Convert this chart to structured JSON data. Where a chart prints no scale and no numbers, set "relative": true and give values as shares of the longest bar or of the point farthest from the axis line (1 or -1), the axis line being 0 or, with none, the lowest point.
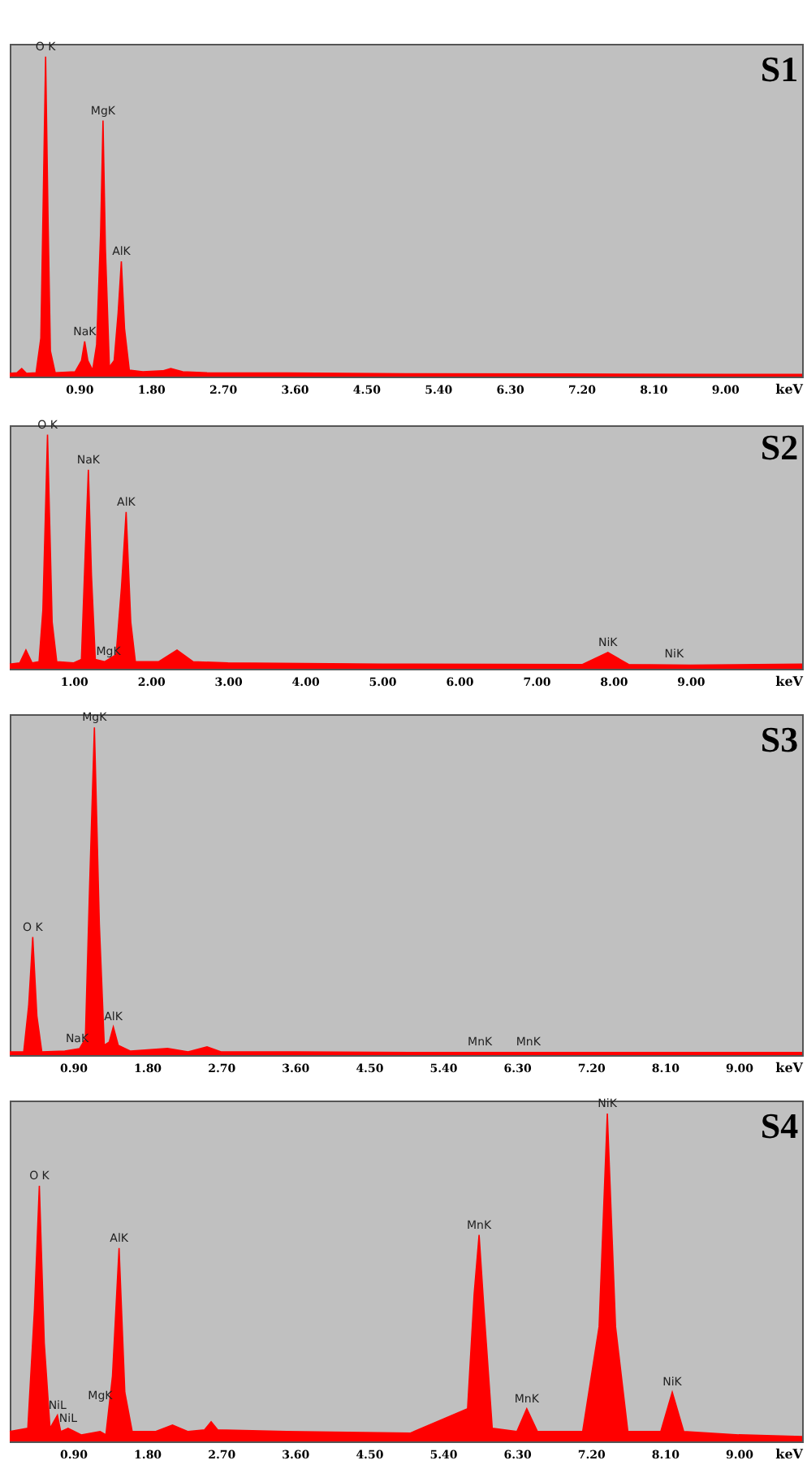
{
  "chart_data": [
    {
      "type": "area",
      "title": "S1",
      "xlabel": "keV",
      "relative": true,
      "color": "#ff0000",
      "xlim": [
        0.03,
        9.97
      ],
      "xticks": [
        {
          "value": 0.9,
          "label": "0.90"
        },
        {
          "value": 1.8,
          "label": "1.80"
        },
        {
          "value": 2.7,
          "label": "2.70"
        },
        {
          "value": 3.6,
          "label": "3.60"
        },
        {
          "value": 4.5,
          "label": "4.50"
        },
        {
          "value": 5.4,
          "label": "5.40"
        },
        {
          "value": 6.3,
          "label": "6.30"
        },
        {
          "value": 7.2,
          "label": "7.20"
        },
        {
          "value": 8.1,
          "label": "8.10"
        },
        {
          "value": 9,
          "label": "9.00"
        }
      ],
      "x": [
        0.03,
        0.12,
        0.18,
        0.24,
        0.36,
        0.42,
        0.45,
        0.48,
        0.51,
        0.54,
        0.6,
        0.85,
        0.93,
        0.97,
        1.01,
        1.07,
        1.12,
        1.17,
        1.2,
        1.23,
        1.28,
        1.34,
        1.39,
        1.43,
        1.47,
        1.53,
        1.7,
        1.95,
        2.05,
        2.2,
        2.5,
        3.5,
        5,
        7,
        9,
        9.97
      ],
      "values": [
        0.01,
        0.012,
        0.025,
        0.01,
        0.012,
        0.12,
        0.55,
        1,
        0.5,
        0.08,
        0.012,
        0.015,
        0.05,
        0.11,
        0.05,
        0.02,
        0.1,
        0.45,
        0.8,
        0.4,
        0.03,
        0.05,
        0.2,
        0.36,
        0.15,
        0.02,
        0.015,
        0.018,
        0.025,
        0.015,
        0.012,
        0.011,
        0.009,
        0.008,
        0.007,
        0.007
      ],
      "annotations": [
        {
          "text": "O K",
          "x": 0.48,
          "y": 1
        },
        {
          "text": "MgK",
          "x": 1.2,
          "y": 0.8
        },
        {
          "text": "AlK",
          "x": 1.43,
          "y": 0.36
        },
        {
          "text": "NaK",
          "x": 0.97,
          "y": 0.11
        }
      ]
    },
    {
      "type": "area",
      "title": "S2",
      "xlabel": "keV",
      "relative": true,
      "color": "#ff0000",
      "xlim": [
        0.17,
        10.45
      ],
      "xticks": [
        {
          "value": 1,
          "label": "1.00"
        },
        {
          "value": 2,
          "label": "2.00"
        },
        {
          "value": 3,
          "label": "3.00"
        },
        {
          "value": 4,
          "label": "4.00"
        },
        {
          "value": 5,
          "label": "5.00"
        },
        {
          "value": 6,
          "label": "6.00"
        },
        {
          "value": 7,
          "label": "7.00"
        },
        {
          "value": 8,
          "label": "8.00"
        },
        {
          "value": 9,
          "label": "9.00"
        }
      ],
      "x": [
        0.17,
        0.3,
        0.38,
        0.46,
        0.55,
        0.6,
        0.66,
        0.72,
        0.78,
        1.0,
        1.1,
        1.15,
        1.19,
        1.23,
        1.28,
        1.4,
        1.55,
        1.62,
        1.68,
        1.74,
        1.8,
        2.1,
        2.34,
        2.55,
        3,
        5,
        7.6,
        7.93,
        8.2,
        9,
        10.45
      ],
      "values": [
        0.02,
        0.025,
        0.08,
        0.025,
        0.03,
        0.25,
        1,
        0.2,
        0.03,
        0.025,
        0.04,
        0.5,
        0.85,
        0.4,
        0.04,
        0.03,
        0.06,
        0.35,
        0.67,
        0.2,
        0.03,
        0.03,
        0.08,
        0.03,
        0.025,
        0.02,
        0.018,
        0.07,
        0.018,
        0.015,
        0.02
      ],
      "annotations": [
        {
          "text": "O K",
          "x": 0.66,
          "y": 1
        },
        {
          "text": "NaK",
          "x": 1.19,
          "y": 0.85
        },
        {
          "text": "AlK",
          "x": 1.68,
          "y": 0.67
        },
        {
          "text": "MgK",
          "x": 1.45,
          "y": 0.03
        },
        {
          "text": "NiK",
          "x": 7.93,
          "y": 0.07
        },
        {
          "text": "NiK",
          "x": 8.79,
          "y": 0.02
        }
      ]
    },
    {
      "type": "area",
      "title": "S3",
      "xlabel": "keV",
      "relative": true,
      "color": "#ff0000",
      "xlim": [
        0.13,
        9.77
      ],
      "xticks": [
        {
          "value": 0.9,
          "label": "0.90"
        },
        {
          "value": 1.8,
          "label": "1.80"
        },
        {
          "value": 2.7,
          "label": "2.70"
        },
        {
          "value": 3.6,
          "label": "3.60"
        },
        {
          "value": 4.5,
          "label": "4.50"
        },
        {
          "value": 5.4,
          "label": "5.40"
        },
        {
          "value": 6.3,
          "label": "6.30"
        },
        {
          "value": 7.2,
          "label": "7.20"
        },
        {
          "value": 8.1,
          "label": "8.10"
        },
        {
          "value": 9,
          "label": "9.00"
        }
      ],
      "x": [
        0.13,
        0.3,
        0.36,
        0.41,
        0.46,
        0.52,
        0.8,
        0.98,
        1.05,
        1.1,
        1.16,
        1.22,
        1.28,
        1.34,
        1.39,
        1.45,
        1.6,
        2.05,
        2.3,
        2.53,
        2.7,
        3.6,
        5,
        7,
        9.77
      ],
      "values": [
        0.01,
        0.01,
        0.15,
        0.36,
        0.12,
        0.01,
        0.012,
        0.02,
        0.05,
        0.5,
        1,
        0.4,
        0.03,
        0.04,
        0.086,
        0.03,
        0.012,
        0.02,
        0.01,
        0.025,
        0.01,
        0.01,
        0.008,
        0.008,
        0.008
      ],
      "annotations": [
        {
          "text": "MgK",
          "x": 1.16,
          "y": 1
        },
        {
          "text": "O K",
          "x": 0.41,
          "y": 0.36
        },
        {
          "text": "NaK",
          "x": 0.95,
          "y": 0.02
        },
        {
          "text": "AlK",
          "x": 1.39,
          "y": 0.086
        },
        {
          "text": "MnK",
          "x": 5.85,
          "y": 0.01
        },
        {
          "text": "MnK",
          "x": 6.44,
          "y": 0.01
        }
      ]
    },
    {
      "type": "area",
      "title": "S4",
      "xlabel": "keV",
      "relative": true,
      "color": "#ff0000",
      "xlim": [
        0.13,
        9.77
      ],
      "xticks": [
        {
          "value": 0.9,
          "label": "0.90"
        },
        {
          "value": 1.8,
          "label": "1.80"
        },
        {
          "value": 2.7,
          "label": "2.70"
        },
        {
          "value": 3.6,
          "label": "3.60"
        },
        {
          "value": 4.5,
          "label": "4.50"
        },
        {
          "value": 5.4,
          "label": "5.40"
        },
        {
          "value": 6.3,
          "label": "6.30"
        },
        {
          "value": 7.2,
          "label": "7.20"
        },
        {
          "value": 8.1,
          "label": "8.10"
        },
        {
          "value": 9,
          "label": "9.00"
        }
      ],
      "x": [
        0.13,
        0.35,
        0.43,
        0.49,
        0.55,
        0.62,
        0.71,
        0.75,
        0.84,
        1.0,
        1.23,
        1.3,
        1.38,
        1.46,
        1.53,
        1.62,
        1.9,
        2.11,
        2.3,
        2.5,
        2.58,
        2.66,
        3.5,
        5,
        5.7,
        5.78,
        5.84,
        5.9,
        6.0,
        6.3,
        6.42,
        6.55,
        7.1,
        7.3,
        7.4,
        7.5,
        7.65,
        8.05,
        8.19,
        8.33,
        9,
        9.77
      ],
      "values": [
        0.03,
        0.04,
        0.4,
        0.78,
        0.3,
        0.04,
        0.08,
        0.03,
        0.04,
        0.02,
        0.03,
        0.02,
        0.2,
        0.59,
        0.15,
        0.03,
        0.03,
        0.05,
        0.03,
        0.035,
        0.06,
        0.035,
        0.03,
        0.025,
        0.1,
        0.45,
        0.63,
        0.4,
        0.04,
        0.03,
        0.1,
        0.03,
        0.03,
        0.35,
        1,
        0.35,
        0.03,
        0.03,
        0.15,
        0.03,
        0.02,
        0.015
      ],
      "annotations": [
        {
          "text": "O K",
          "x": 0.49,
          "y": 0.78
        },
        {
          "text": "NiL",
          "x": 0.71,
          "y": 0.08
        },
        {
          "text": "NiL",
          "x": 0.84,
          "y": 0.04
        },
        {
          "text": "MgK",
          "x": 1.23,
          "y": 0.11
        },
        {
          "text": "AlK",
          "x": 1.46,
          "y": 0.59
        },
        {
          "text": "MnK",
          "x": 5.84,
          "y": 0.63
        },
        {
          "text": "MnK",
          "x": 6.42,
          "y": 0.1
        },
        {
          "text": "NiK",
          "x": 7.4,
          "y": 1
        },
        {
          "text": "NiK",
          "x": 8.19,
          "y": 0.15
        }
      ]
    }
  ]
}
